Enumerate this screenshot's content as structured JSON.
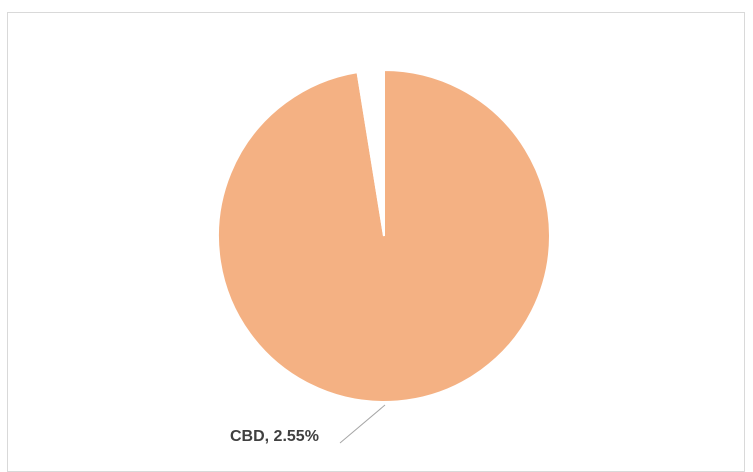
{
  "chart_data": {
    "type": "pie",
    "slices": [
      {
        "label": "",
        "value": 97.45,
        "color": "#f4b183"
      },
      {
        "label": "CBD",
        "value": 2.55,
        "color": "#ffffff"
      }
    ],
    "data_labels": [
      {
        "text": "CBD, 2.55%"
      }
    ],
    "legend": "none",
    "slice_border_color": "#ffffff"
  }
}
